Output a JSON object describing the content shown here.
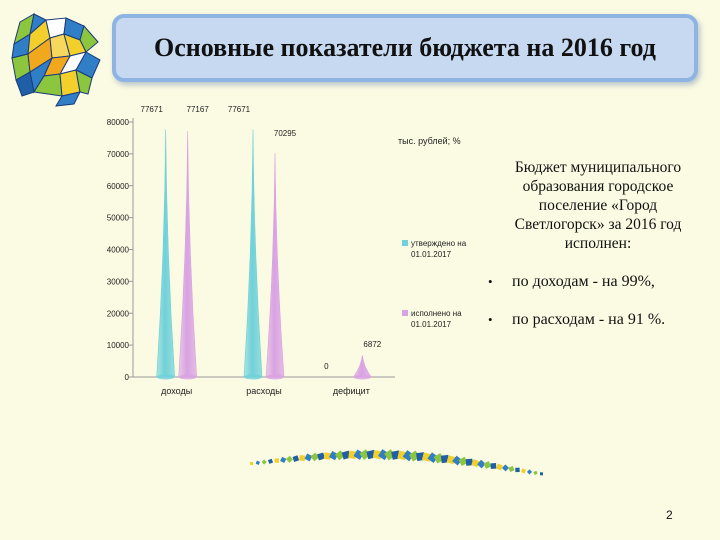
{
  "title": "Основные показатели бюджета на 2016 год",
  "summary": "Бюджет муниципального образования городское поселение «Город Светлогорск» за 2016 год исполнен:",
  "bullets": [
    "по доходам - на 99%,",
    "по расходам  - на 91 %."
  ],
  "page_number": "2",
  "colors": {
    "approved": "#6fd1d9",
    "executed": "#d9a2e3",
    "title_bg": "#c6d9f1",
    "page_bg": "#fbfbe3"
  },
  "chart_data": {
    "type": "bar",
    "bar_shape": "cone",
    "unit_label": "тыс. рублей; %",
    "categories": [
      "доходы",
      "расходы",
      "дефицит"
    ],
    "ylim": [
      0,
      80000
    ],
    "yticks": [
      0,
      10000,
      20000,
      30000,
      40000,
      50000,
      60000,
      70000,
      80000
    ],
    "legend_position": "right",
    "series": [
      {
        "name": "утверждено на 01.01.2017",
        "color": "#6fd1d9",
        "values": [
          77671,
          77671,
          0
        ],
        "labels": [
          "77671",
          "77671",
          "0"
        ]
      },
      {
        "name": "исполнено на 01.01.2017",
        "color": "#d9a2e3",
        "values": [
          77167,
          70295,
          6872
        ],
        "labels": [
          "77167",
          "70295",
          "6872"
        ]
      }
    ]
  }
}
